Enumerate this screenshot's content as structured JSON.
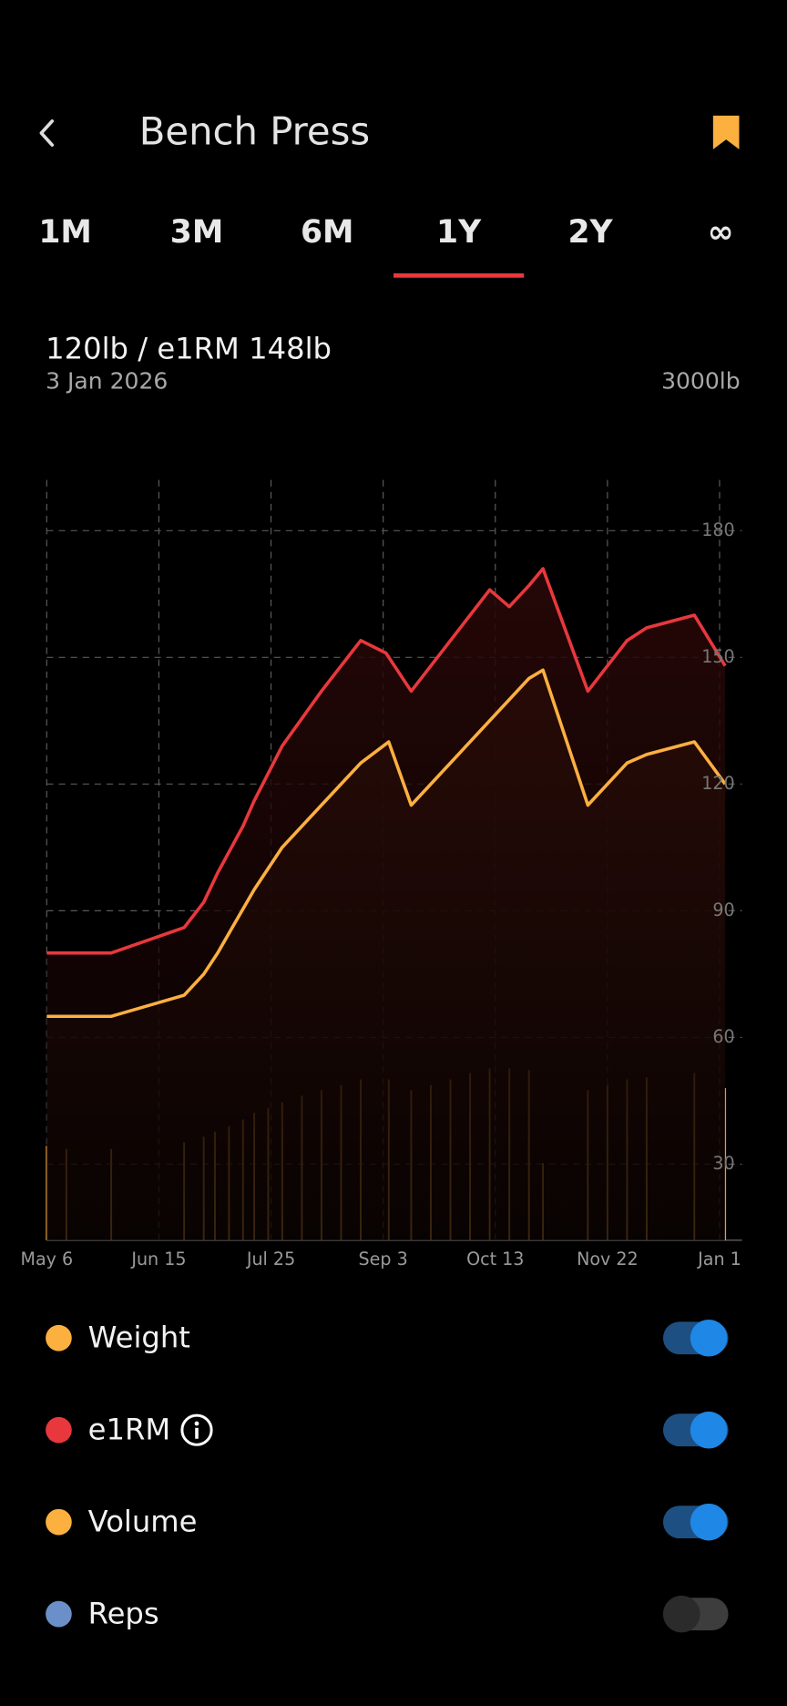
{
  "header": {
    "title": "Bench Press"
  },
  "tabs": {
    "items": [
      "1M",
      "3M",
      "6M",
      "1Y",
      "2Y",
      "∞"
    ],
    "selected": 3
  },
  "summary": {
    "headline": "120lb / e1RM 148lb",
    "date": "3 Jan 2026",
    "volume": "3000lb"
  },
  "chart_data": {
    "type": "line",
    "xlim": [
      0,
      248
    ],
    "xticks": [
      {
        "value": 0,
        "label": "May 6"
      },
      {
        "value": 40,
        "label": "Jun 15"
      },
      {
        "value": 80,
        "label": "Jul 25"
      },
      {
        "value": 120,
        "label": "Sep 3"
      },
      {
        "value": 160,
        "label": "Oct 13"
      },
      {
        "value": 200,
        "label": "Nov 22"
      },
      {
        "value": 240,
        "label": "Jan 1"
      }
    ],
    "ylim": [
      12,
      192
    ],
    "yticks": [
      30,
      60,
      90,
      120,
      150,
      180
    ],
    "y2lim": [
      0,
      15000
    ],
    "grid": true,
    "series": [
      {
        "name": "Weight",
        "color": "#fbb040",
        "visible": true,
        "x": [
          0,
          23,
          49,
          56,
          61,
          67,
          74,
          84,
          98,
          112,
          122,
          130,
          172,
          177,
          193,
          207,
          214,
          231,
          242
        ],
        "values": [
          65,
          65,
          70,
          75,
          80,
          87,
          95,
          105,
          115,
          125,
          130,
          115,
          145,
          147,
          115,
          125,
          127,
          130,
          120
        ]
      },
      {
        "name": "e1RM",
        "color": "#e8383d",
        "visible": true,
        "x": [
          0,
          23,
          49,
          56,
          61,
          70,
          74,
          84,
          98,
          112,
          121,
          130,
          158,
          165,
          172,
          177,
          193,
          207,
          214,
          231,
          242
        ],
        "values": [
          80,
          80,
          86,
          92,
          99,
          110,
          116,
          129,
          142,
          154,
          151,
          142,
          166,
          162,
          167,
          171,
          142,
          154,
          157,
          160,
          148
        ]
      },
      {
        "name": "Volume",
        "color": "#fbb040",
        "visible": true,
        "type": "bar",
        "axis": "y2",
        "x": [
          0,
          7,
          23,
          49,
          56,
          60,
          65,
          70,
          74,
          79,
          84,
          91,
          98,
          105,
          112,
          122,
          130,
          137,
          144,
          151,
          158,
          165,
          172,
          177,
          193,
          200,
          207,
          214,
          231,
          242
        ],
        "values": [
          1860,
          1800,
          1800,
          1930,
          2040,
          2140,
          2250,
          2380,
          2510,
          2610,
          2720,
          2850,
          2960,
          3060,
          3170,
          3170,
          2960,
          3060,
          3170,
          3300,
          3390,
          3390,
          3360,
          1520,
          2960,
          3060,
          3170,
          3210,
          3300,
          3000
        ]
      },
      {
        "name": "Reps",
        "color": "#6b8fc9",
        "visible": false,
        "x": [],
        "values": []
      }
    ]
  }
}
